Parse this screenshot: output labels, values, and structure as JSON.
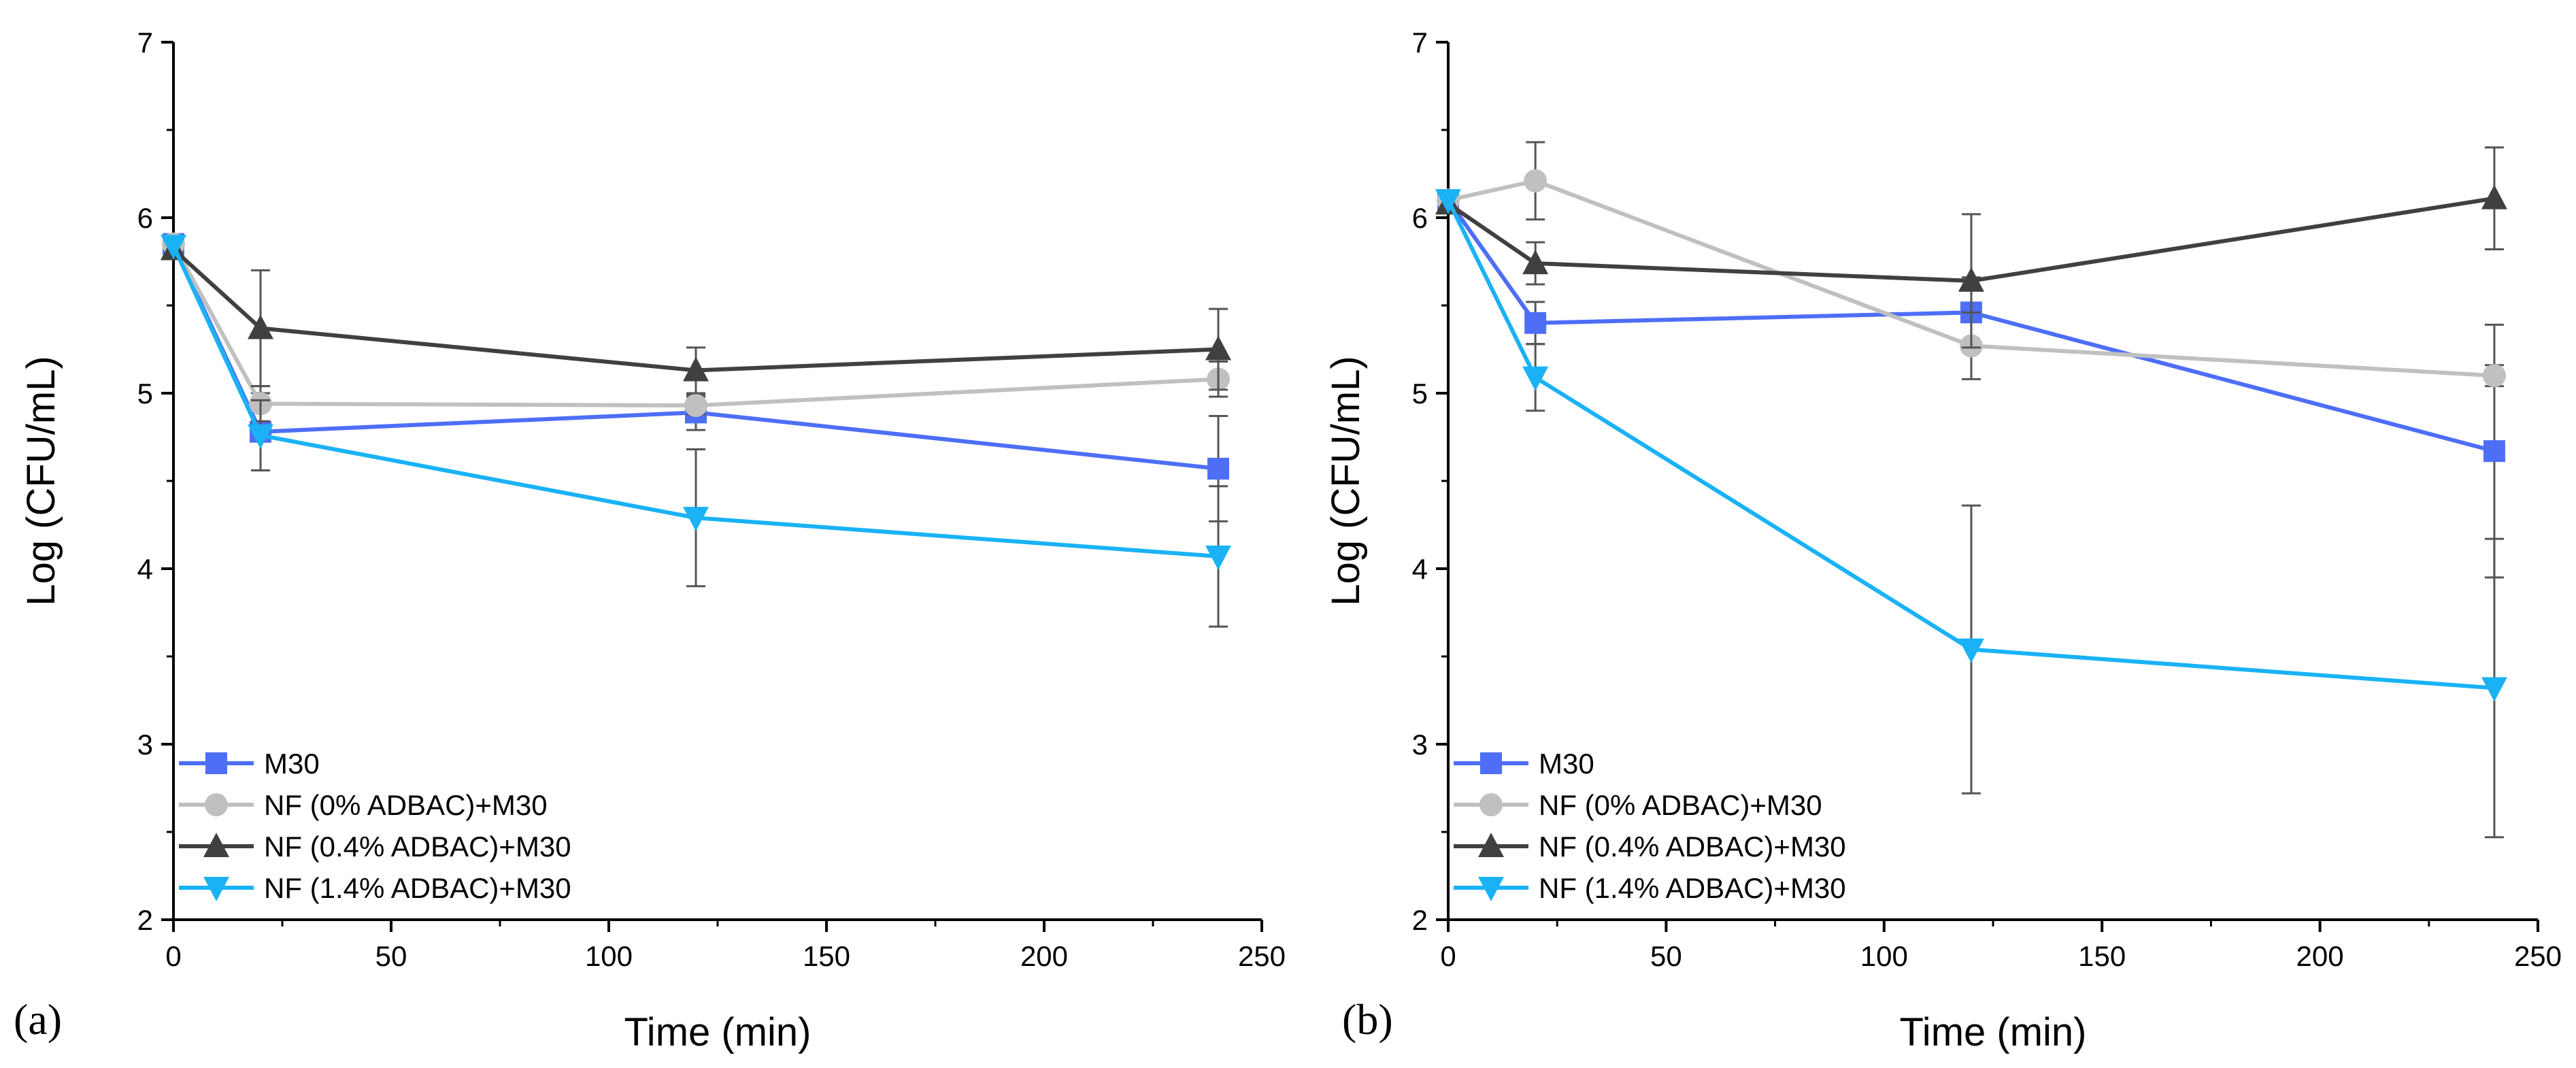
{
  "chart_data": [
    {
      "type": "line",
      "panel_label": "(a)",
      "xlabel": "Time (min)",
      "ylabel": "Log (CFU/mL)",
      "xlim": [
        0,
        250
      ],
      "ylim": [
        2,
        7
      ],
      "xticks": [
        0,
        50,
        100,
        150,
        200,
        250
      ],
      "yticks": [
        2,
        3,
        4,
        5,
        6,
        7
      ],
      "grid": false,
      "legend_position": "bottom-left",
      "x": [
        0,
        20,
        120,
        240
      ],
      "series": [
        {
          "name": "M30",
          "color": "#4d6ef5",
          "marker": "square",
          "values": [
            5.85,
            4.78,
            4.89,
            4.57
          ],
          "errors": [
            0.0,
            0.22,
            0.1,
            0.3
          ]
        },
        {
          "name": "NF (0% ADBAC)+M30",
          "color": "#c0c0c0",
          "marker": "circle",
          "values": [
            5.85,
            4.94,
            4.93,
            5.08
          ],
          "errors": [
            0.0,
            0.1,
            0.05,
            0.1
          ]
        },
        {
          "name": "NF (0.4% ADBAC)+M30",
          "color": "#404040",
          "marker": "triangle-up",
          "values": [
            5.82,
            5.37,
            5.13,
            5.25
          ],
          "errors": [
            0.0,
            0.33,
            0.13,
            0.23
          ]
        },
        {
          "name": "NF (1.4% ADBAC)+M30",
          "color": "#1ab2f5",
          "marker": "triangle-down",
          "values": [
            5.84,
            4.76,
            4.29,
            4.07
          ],
          "errors": [
            0.0,
            0.2,
            0.39,
            0.4
          ]
        }
      ]
    },
    {
      "type": "line",
      "panel_label": "(b)",
      "xlabel": "Time (min)",
      "ylabel": "Log (CFU/mL)",
      "xlim": [
        0,
        250
      ],
      "ylim": [
        2,
        7
      ],
      "xticks": [
        0,
        50,
        100,
        150,
        200,
        250
      ],
      "yticks": [
        2,
        3,
        4,
        5,
        6,
        7
      ],
      "grid": false,
      "legend_position": "bottom-left",
      "x": [
        0,
        20,
        120,
        240
      ],
      "series": [
        {
          "name": "M30",
          "color": "#4d6ef5",
          "marker": "square",
          "values": [
            6.1,
            5.4,
            5.46,
            4.67
          ],
          "errors": [
            0.0,
            0.12,
            0.2,
            0.72
          ]
        },
        {
          "name": "NF (0% ADBAC)+M30",
          "color": "#c0c0c0",
          "marker": "circle",
          "values": [
            6.1,
            6.21,
            5.27,
            5.1
          ],
          "errors": [
            0.0,
            0.22,
            0.19,
            0.06
          ]
        },
        {
          "name": "NF (0.4% ADBAC)+M30",
          "color": "#404040",
          "marker": "triangle-up",
          "values": [
            6.08,
            5.74,
            5.64,
            6.11
          ],
          "errors": [
            0.0,
            0.12,
            0.38,
            0.29
          ]
        },
        {
          "name": "NF (1.4% ADBAC)+M30",
          "color": "#1ab2f5",
          "marker": "triangle-down",
          "values": [
            6.1,
            5.09,
            3.54,
            3.32
          ],
          "errors": [
            0.0,
            0.19,
            0.82,
            0.85
          ]
        }
      ]
    }
  ]
}
